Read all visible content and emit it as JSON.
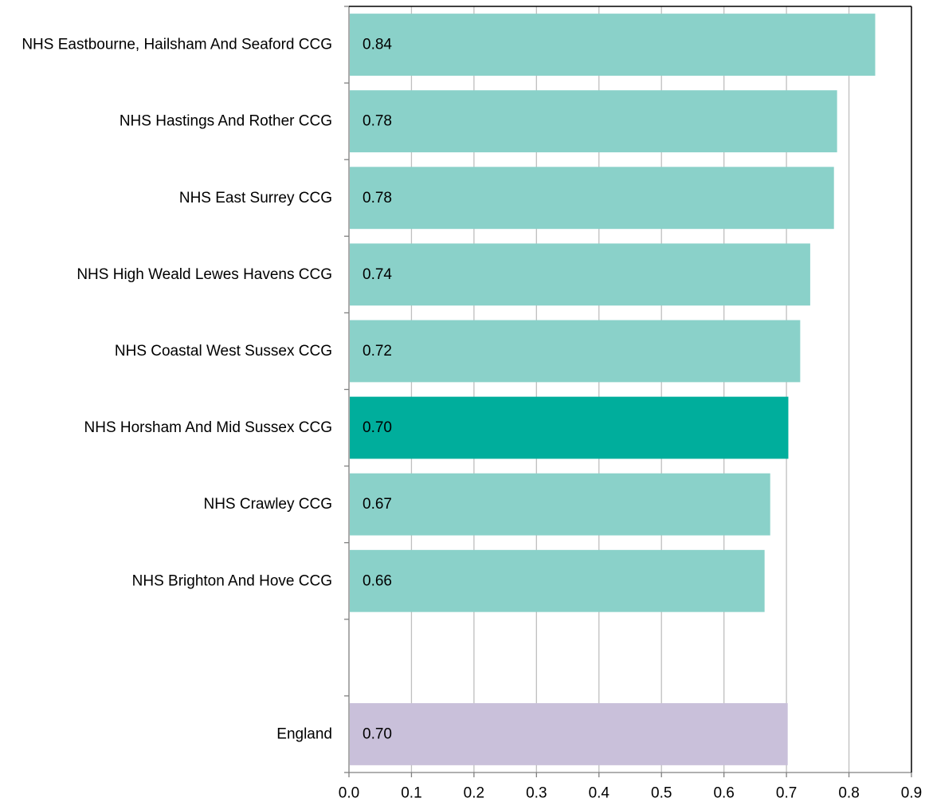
{
  "chart_data": {
    "type": "bar",
    "orientation": "horizontal",
    "title": "",
    "xlabel": "",
    "ylabel": "",
    "xlim": [
      0,
      0.9
    ],
    "xticks": [
      0.0,
      0.1,
      0.2,
      0.3,
      0.4,
      0.5,
      0.6,
      0.7,
      0.8,
      0.9
    ],
    "xtick_labels": [
      "0.0",
      "0.1",
      "0.2",
      "0.3",
      "0.4",
      "0.5",
      "0.6",
      "0.7",
      "0.8",
      "0.9"
    ],
    "grid": "vertical",
    "legend": "none",
    "bars": [
      {
        "category": "NHS Eastbourne, Hailsham And Seaford CCG",
        "value": 0.842,
        "label": "0.84",
        "color": "#8ad1c9"
      },
      {
        "category": "NHS Hastings And Rother CCG",
        "value": 0.781,
        "label": "0.78",
        "color": "#8ad1c9"
      },
      {
        "category": "NHS East Surrey CCG",
        "value": 0.776,
        "label": "0.78",
        "color": "#8ad1c9"
      },
      {
        "category": "NHS High Weald Lewes Havens CCG",
        "value": 0.738,
        "label": "0.74",
        "color": "#8ad1c9"
      },
      {
        "category": "NHS Coastal West Sussex CCG",
        "value": 0.722,
        "label": "0.72",
        "color": "#8ad1c9"
      },
      {
        "category": "NHS Horsham And Mid Sussex CCG",
        "value": 0.703,
        "label": "0.70",
        "color": "#00ae9c"
      },
      {
        "category": "NHS Crawley CCG",
        "value": 0.674,
        "label": "0.67",
        "color": "#8ad1c9"
      },
      {
        "category": "NHS Brighton And Hove CCG",
        "value": 0.665,
        "label": "0.66",
        "color": "#8ad1c9"
      },
      {
        "category": "",
        "value": null,
        "label": "",
        "color": ""
      },
      {
        "category": "England",
        "value": 0.702,
        "label": "0.70",
        "color": "#c9c0da"
      }
    ]
  }
}
